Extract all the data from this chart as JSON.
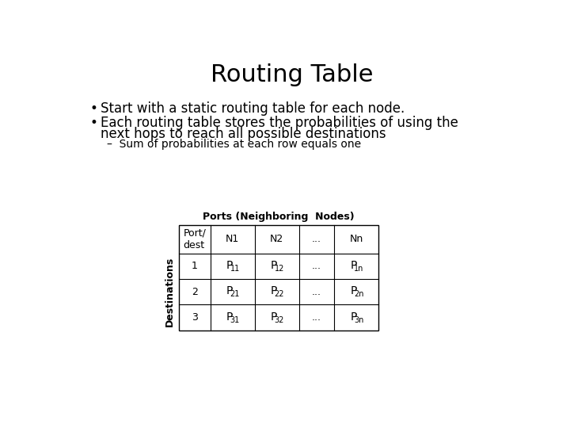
{
  "title": "Routing Table",
  "title_fontsize": 22,
  "bg_color": "#ffffff",
  "bullet1": "Start with a static routing table for each node.",
  "bullet2_line1": "Each routing table stores the probabilities of using the",
  "bullet2_line2": "next hops to reach all possible destinations",
  "sub_bullet": "–  Sum of probabilities at each row equals one",
  "table_title": "Ports (Neighboring  Nodes)",
  "col_labels": [
    "Port/\ndest",
    "N1",
    "N2",
    "...",
    "Nn"
  ],
  "row_labels": [
    "1",
    "2",
    "3"
  ],
  "destinations_label": "Destinations",
  "font_size_body": 12,
  "font_size_sub": 10,
  "font_size_table": 9,
  "font_size_table_title": 9
}
